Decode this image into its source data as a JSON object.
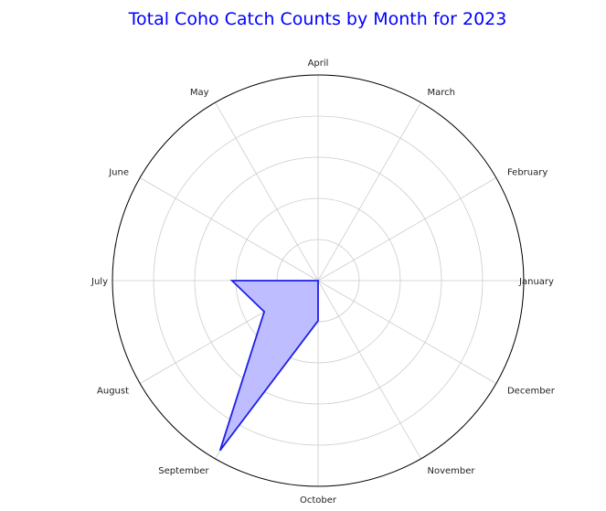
{
  "chart_data": {
    "type": "radar",
    "title": "Total Coho Catch Counts by Month for 2023",
    "categories": [
      "January",
      "February",
      "March",
      "April",
      "May",
      "June",
      "July",
      "August",
      "September",
      "October",
      "November",
      "December"
    ],
    "series": [
      {
        "values": [
          0,
          0,
          0,
          0,
          0,
          0,
          90,
          65,
          205,
          42,
          0,
          0
        ]
      }
    ],
    "rlim": [
      0,
      215
    ],
    "grid": true,
    "tick_labels_radial": [],
    "colors": {
      "line": "#1f1fe6",
      "fill": "#b9b9ff",
      "grid": "#cccccc",
      "outline": "#000000",
      "title": "#0000ff"
    }
  }
}
